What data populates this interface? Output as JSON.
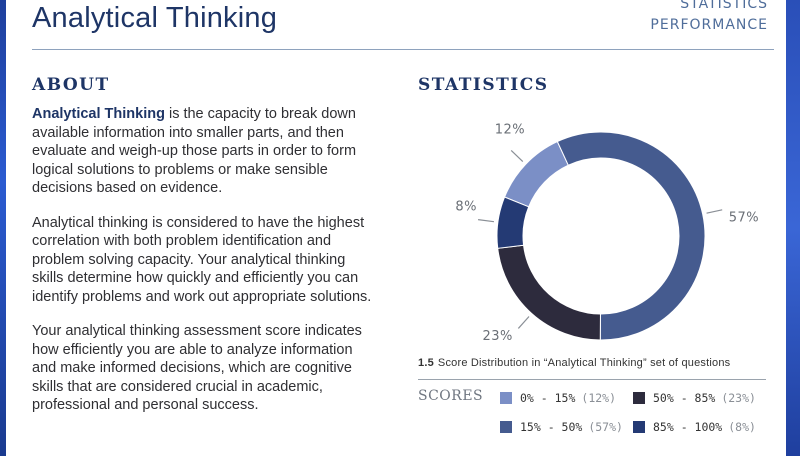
{
  "header": {
    "title": "Analytical Thinking",
    "nav": [
      "STATISTICS",
      "PERFORMANCE"
    ]
  },
  "about": {
    "heading": "ABOUT",
    "p1_bold": "Analytical Thinking",
    "p1_rest": " is the capacity to break down available information into smaller parts, and then evaluate and weigh-up those parts in order to form logical solutions to problems or make sensible decisions based on evidence.",
    "p2": "Analytical thinking is considered to have the highest correlation with both problem identification and problem solving capacity. Your analytical thinking skills determine how quickly and efficiently you can identify problems and work out appropriate solutions.",
    "p3": "Your analytical thinking assessment score indicates how efficiently you are able to analyze information and make informed decisions, which are cognitive skills that are considered crucial in academic, professional and personal success."
  },
  "statistics": {
    "heading": "STATISTICS",
    "caption_number": "1.5",
    "caption_text": "Score Distribution in “Analytical Thinking” set of questions",
    "scores_label": "SCORES"
  },
  "colors": {
    "c0_15": "#7b8fc6",
    "c15_50": "#455b8f",
    "c50_85": "#2d2b3d",
    "c85_100": "#243a74"
  },
  "chart_data": {
    "type": "pie",
    "variant": "donut",
    "slices": [
      {
        "label": "0% - 15%",
        "value": 12,
        "display": "12%",
        "legend_pct": "(12%)",
        "color": "#7b8fc6"
      },
      {
        "label": "15% - 50%",
        "value": 57,
        "display": "57%",
        "legend_pct": "(57%)",
        "color": "#455b8f"
      },
      {
        "label": "50% - 85%",
        "value": 23,
        "display": "23%",
        "legend_pct": "(23%)",
        "color": "#2d2b3d"
      },
      {
        "label": "85% - 100%",
        "value": 8,
        "display": "8%",
        "legend_pct": "(8%)",
        "color": "#243a74"
      }
    ],
    "legend": [
      {
        "range": "0% - 15%",
        "pct": "(12%)",
        "color": "#7b8fc6"
      },
      {
        "range": "50% - 85%",
        "pct": "(23%)",
        "color": "#2d2b3d"
      },
      {
        "range": "15% - 50%",
        "pct": "(57%)",
        "color": "#455b8f"
      },
      {
        "range": "85% - 100%",
        "pct": "(8%)",
        "color": "#243a74"
      }
    ]
  }
}
